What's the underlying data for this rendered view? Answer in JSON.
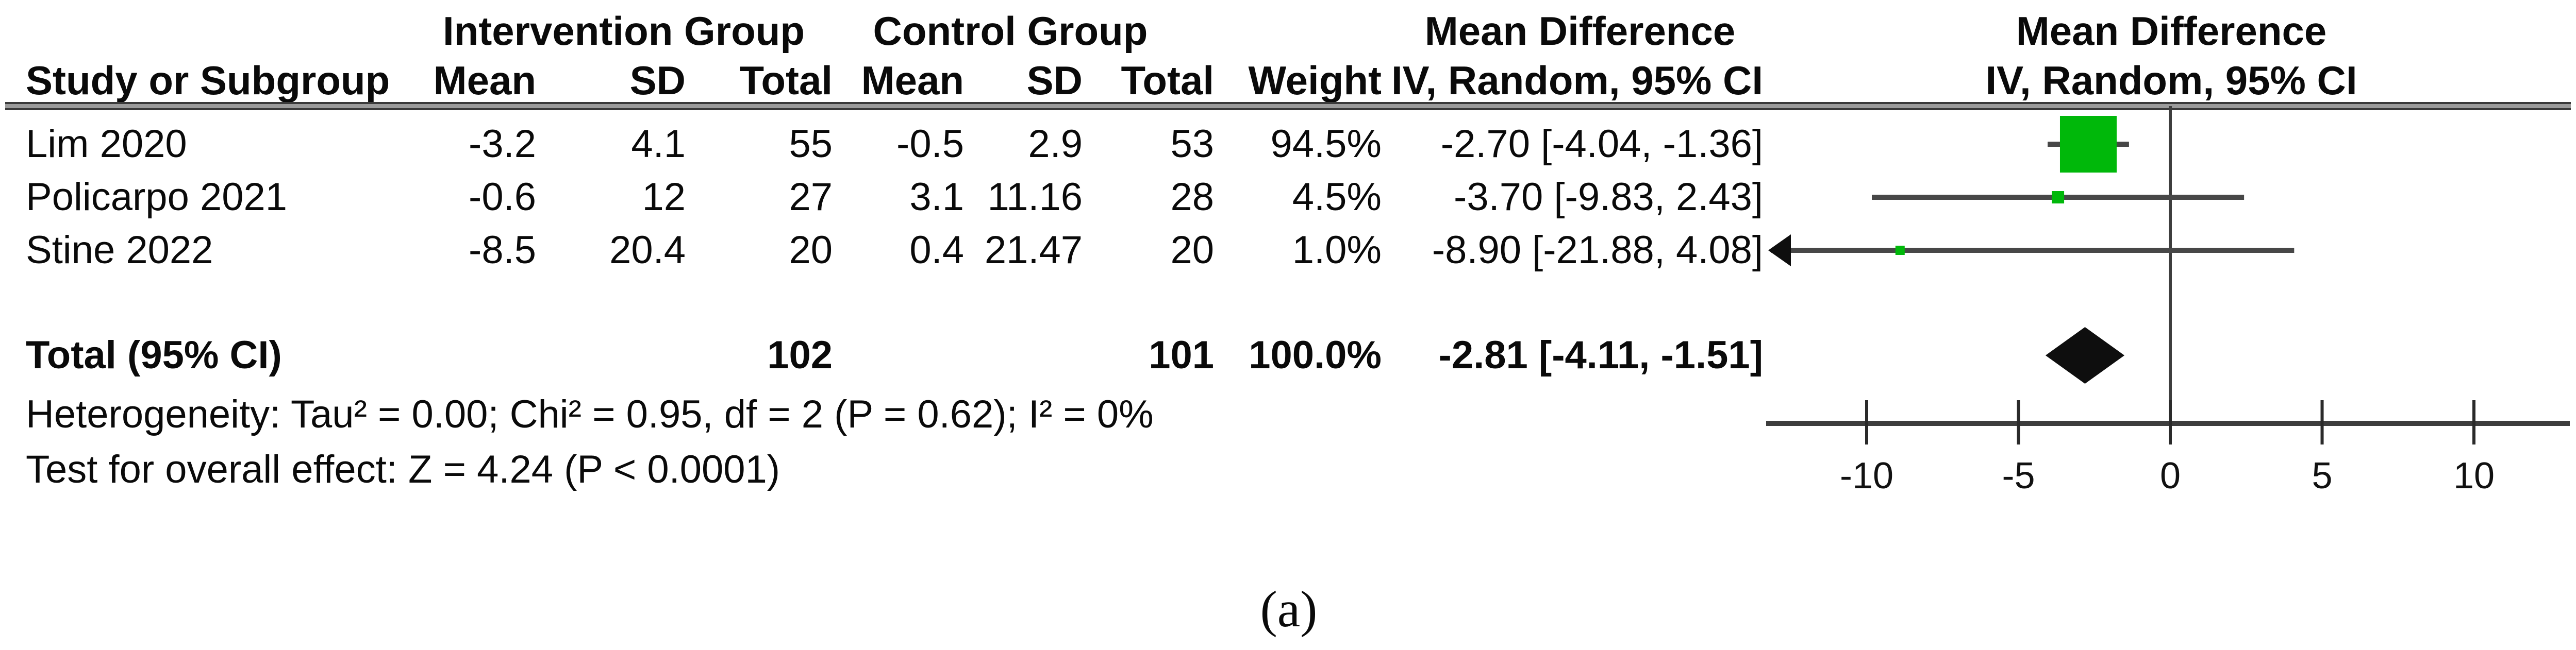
{
  "header": {
    "intervention_group": "Intervention Group",
    "control_group": "Control Group",
    "md_column_title": "Mean Difference",
    "md_column_subtitle": "IV, Random, 95% CI",
    "plot_title": "Mean Difference",
    "plot_subtitle": "IV, Random, 95% CI",
    "columns": [
      "Study or Subgroup",
      "Mean",
      "SD",
      "Total",
      "Mean",
      "SD",
      "Total",
      "Weight",
      "IV, Random, 95% CI"
    ]
  },
  "footer": {
    "heterogeneity": "Heterogeneity: Tau² = 0.00; Chi² = 0.95, df = 2 (P = 0.62); I² = 0%",
    "overall_effect": "Test for overall effect: Z = 4.24 (P < 0.0001)"
  },
  "caption": "(a)",
  "chart_data": {
    "type": "forest",
    "effect_measure": "Mean Difference",
    "model": "IV, Random, 95% CI",
    "studies": [
      {
        "study": "Lim 2020",
        "cells": [
          "Lim 2020",
          "-3.2",
          "4.1",
          "55",
          "-0.5",
          "2.9",
          "53",
          "94.5%",
          "-2.70 [-4.04, -1.36]"
        ],
        "intervention": {
          "mean": -3.2,
          "sd": 4.1,
          "total": 55
        },
        "control": {
          "mean": -0.5,
          "sd": 2.9,
          "total": 53
        },
        "weight_pct": 94.5,
        "md": -2.7,
        "ci_low": -4.04,
        "ci_high": -1.36
      },
      {
        "study": "Policarpo 2021",
        "cells": [
          "Policarpo 2021",
          "-0.6",
          "12",
          "27",
          "3.1",
          "11.16",
          "28",
          "4.5%",
          "-3.70 [-9.83, 2.43]"
        ],
        "intervention": {
          "mean": -0.6,
          "sd": 12,
          "total": 27
        },
        "control": {
          "mean": 3.1,
          "sd": 11.16,
          "total": 28
        },
        "weight_pct": 4.5,
        "md": -3.7,
        "ci_low": -9.83,
        "ci_high": 2.43
      },
      {
        "study": "Stine 2022",
        "cells": [
          "Stine 2022",
          "-8.5",
          "20.4",
          "20",
          "0.4",
          "21.47",
          "20",
          "1.0%",
          "-8.90 [-21.88, 4.08]"
        ],
        "intervention": {
          "mean": -8.5,
          "sd": 20.4,
          "total": 20
        },
        "control": {
          "mean": 0.4,
          "sd": 21.47,
          "total": 20
        },
        "weight_pct": 1.0,
        "md": -8.9,
        "ci_low": -21.88,
        "ci_high": 4.08
      }
    ],
    "total": {
      "label": "Total (95% CI)",
      "cells": [
        "Total (95% CI)",
        "",
        "",
        "102",
        "",
        "",
        "101",
        "100.0%",
        "-2.81 [-4.11, -1.51]"
      ],
      "intervention_total": 102,
      "control_total": 101,
      "weight_pct": 100.0,
      "md": -2.81,
      "ci_low": -4.11,
      "ci_high": -1.51
    },
    "axis": {
      "ticks": [
        -10,
        -5,
        0,
        5,
        10
      ],
      "tick_labels": [
        "-10",
        "-5",
        "0",
        "5",
        "10"
      ],
      "min": -13.3,
      "max": 13.1,
      "zero_reference_line": 0
    },
    "colors": {
      "square": "#00b80a",
      "ci_line": "#474747",
      "diamond": "#0e0e0e",
      "axis": "#3d3d3d",
      "text": "#0a0a0a"
    }
  }
}
